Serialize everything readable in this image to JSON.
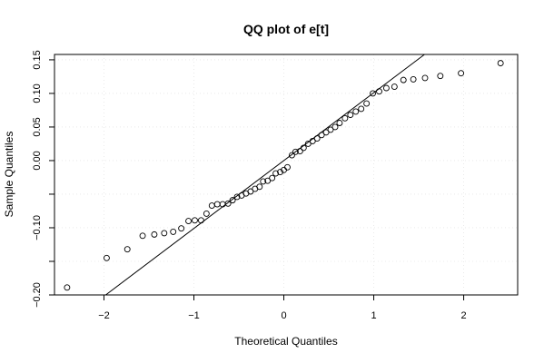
{
  "chart_data": {
    "type": "scatter",
    "title": "QQ plot of e[t]",
    "xlabel": "Theoretical Quantiles",
    "ylabel": "Sample Quantiles",
    "xlim": [
      -2.55,
      2.6
    ],
    "ylim": [
      -0.2,
      0.158
    ],
    "xticks": [
      -2,
      -1,
      0,
      1,
      2
    ],
    "xtick_labels": [
      "−2",
      "−1",
      "0",
      "1",
      "2"
    ],
    "yticks": [
      -0.2,
      -0.15,
      -0.1,
      -0.05,
      0.0,
      0.05,
      0.1,
      0.15
    ],
    "ytick_labels": [
      "−0.20",
      "",
      "−0.10",
      "",
      "0.00",
      "0.05",
      "0.10",
      "0.15"
    ],
    "grid": true,
    "reference_line": {
      "intercept": 0.0,
      "slope": 0.101
    },
    "points": [
      {
        "x": -2.41,
        "y": -0.189
      },
      {
        "x": -1.97,
        "y": -0.145
      },
      {
        "x": -1.74,
        "y": -0.132
      },
      {
        "x": -1.57,
        "y": -0.112
      },
      {
        "x": -1.44,
        "y": -0.11
      },
      {
        "x": -1.33,
        "y": -0.108
      },
      {
        "x": -1.23,
        "y": -0.106
      },
      {
        "x": -1.14,
        "y": -0.101
      },
      {
        "x": -1.06,
        "y": -0.09
      },
      {
        "x": -0.99,
        "y": -0.089
      },
      {
        "x": -0.92,
        "y": -0.089
      },
      {
        "x": -0.86,
        "y": -0.079
      },
      {
        "x": -0.8,
        "y": -0.067
      },
      {
        "x": -0.74,
        "y": -0.065
      },
      {
        "x": -0.68,
        "y": -0.065
      },
      {
        "x": -0.62,
        "y": -0.064
      },
      {
        "x": -0.57,
        "y": -0.059
      },
      {
        "x": -0.52,
        "y": -0.054
      },
      {
        "x": -0.47,
        "y": -0.052
      },
      {
        "x": -0.42,
        "y": -0.049
      },
      {
        "x": -0.37,
        "y": -0.046
      },
      {
        "x": -0.32,
        "y": -0.042
      },
      {
        "x": -0.27,
        "y": -0.039
      },
      {
        "x": -0.23,
        "y": -0.031
      },
      {
        "x": -0.18,
        "y": -0.03
      },
      {
        "x": -0.13,
        "y": -0.026
      },
      {
        "x": -0.09,
        "y": -0.019
      },
      {
        "x": -0.04,
        "y": -0.017
      },
      {
        "x": 0.0,
        "y": -0.014
      },
      {
        "x": 0.04,
        "y": -0.01
      },
      {
        "x": 0.09,
        "y": 0.008
      },
      {
        "x": 0.13,
        "y": 0.013
      },
      {
        "x": 0.18,
        "y": 0.014
      },
      {
        "x": 0.22,
        "y": 0.019
      },
      {
        "x": 0.27,
        "y": 0.025
      },
      {
        "x": 0.32,
        "y": 0.029
      },
      {
        "x": 0.37,
        "y": 0.033
      },
      {
        "x": 0.42,
        "y": 0.038
      },
      {
        "x": 0.47,
        "y": 0.042
      },
      {
        "x": 0.52,
        "y": 0.046
      },
      {
        "x": 0.57,
        "y": 0.05
      },
      {
        "x": 0.62,
        "y": 0.056
      },
      {
        "x": 0.68,
        "y": 0.063
      },
      {
        "x": 0.74,
        "y": 0.068
      },
      {
        "x": 0.8,
        "y": 0.073
      },
      {
        "x": 0.86,
        "y": 0.077
      },
      {
        "x": 0.92,
        "y": 0.085
      },
      {
        "x": 0.99,
        "y": 0.1
      },
      {
        "x": 1.06,
        "y": 0.103
      },
      {
        "x": 1.14,
        "y": 0.108
      },
      {
        "x": 1.23,
        "y": 0.11
      },
      {
        "x": 1.33,
        "y": 0.12
      },
      {
        "x": 1.44,
        "y": 0.121
      },
      {
        "x": 1.57,
        "y": 0.123
      },
      {
        "x": 1.74,
        "y": 0.126
      },
      {
        "x": 1.97,
        "y": 0.13
      },
      {
        "x": 2.41,
        "y": 0.145
      }
    ]
  }
}
